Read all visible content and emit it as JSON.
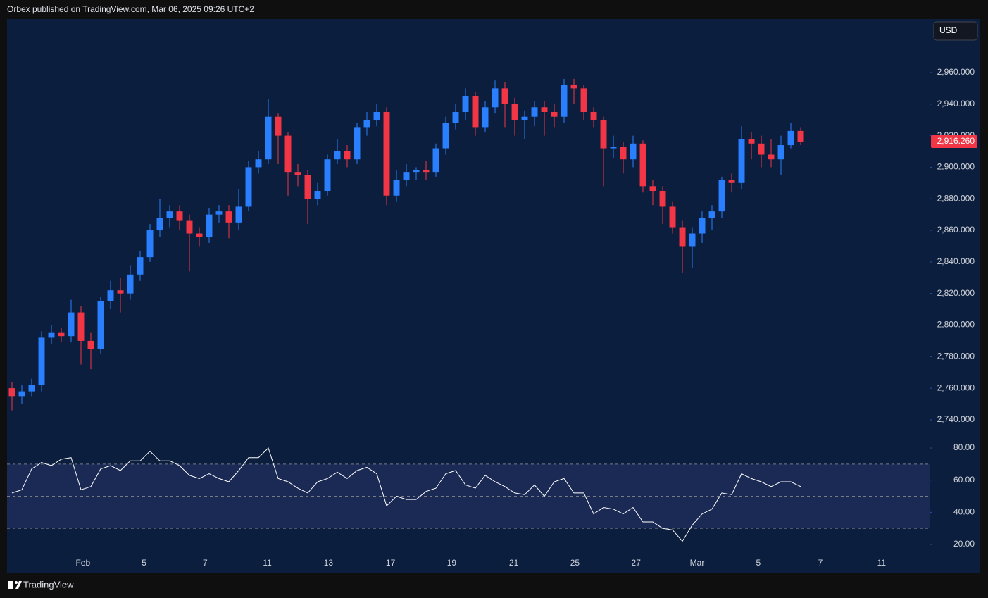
{
  "header": {
    "text": "Orbex published on TradingView.com, Mar 06, 2025 09:26 UTC+2"
  },
  "footer": {
    "brand": "TradingView"
  },
  "chart_data": [
    {
      "type": "candlestick",
      "currency": "USD",
      "up_color": "#2a7fff",
      "down_color": "#f23645",
      "last_price": {
        "value": 2916.26,
        "label": "2,916.260"
      },
      "open": [
        2760,
        2755,
        2758,
        2762,
        2792,
        2795,
        2793,
        2808,
        2790,
        2785,
        2815,
        2822,
        2820,
        2832,
        2843,
        2860,
        2868,
        2872,
        2866,
        2858,
        2856,
        2870,
        2872,
        2865,
        2875,
        2900,
        2905,
        2932,
        2920,
        2897,
        2895,
        2880,
        2885,
        2905,
        2910,
        2905,
        2925,
        2930,
        2935,
        2882,
        2892,
        2897,
        2898,
        2897,
        2912,
        2928,
        2935,
        2945,
        2925,
        2938,
        2950,
        2940,
        2930,
        2932,
        2938,
        2935,
        2932,
        2952,
        2950,
        2935,
        2930,
        2912,
        2913,
        2905,
        2915,
        2888,
        2885,
        2875,
        2862,
        2850,
        2858,
        2868,
        2872,
        2892,
        2890,
        2918,
        2915,
        2908,
        2905,
        2914,
        2923
      ],
      "high": [
        2764,
        2762,
        2766,
        2796,
        2800,
        2798,
        2816,
        2812,
        2795,
        2818,
        2828,
        2830,
        2838,
        2847,
        2864,
        2880,
        2876,
        2876,
        2870,
        2862,
        2874,
        2876,
        2876,
        2886,
        2904,
        2910,
        2943,
        2934,
        2922,
        2902,
        2898,
        2890,
        2908,
        2918,
        2914,
        2928,
        2935,
        2940,
        2938,
        2898,
        2902,
        2900,
        2904,
        2915,
        2932,
        2940,
        2950,
        2948,
        2942,
        2955,
        2954,
        2944,
        2936,
        2942,
        2942,
        2940,
        2956,
        2956,
        2952,
        2938,
        2932,
        2920,
        2916,
        2920,
        2917,
        2892,
        2888,
        2878,
        2866,
        2862,
        2872,
        2876,
        2894,
        2896,
        2926,
        2922,
        2920,
        2918,
        2920,
        2928,
        2925
      ],
      "low": [
        2746,
        2750,
        2755,
        2758,
        2788,
        2789,
        2789,
        2775,
        2772,
        2782,
        2810,
        2808,
        2816,
        2828,
        2840,
        2856,
        2862,
        2860,
        2834,
        2850,
        2852,
        2865,
        2855,
        2860,
        2872,
        2896,
        2902,
        2902,
        2882,
        2888,
        2864,
        2876,
        2882,
        2902,
        2900,
        2902,
        2920,
        2926,
        2876,
        2878,
        2888,
        2892,
        2892,
        2894,
        2908,
        2924,
        2930,
        2920,
        2922,
        2934,
        2925,
        2920,
        2918,
        2926,
        2920,
        2925,
        2928,
        2940,
        2930,
        2925,
        2888,
        2906,
        2896,
        2900,
        2884,
        2876,
        2864,
        2858,
        2833,
        2836,
        2852,
        2860,
        2868,
        2884,
        2886,
        2905,
        2900,
        2900,
        2895,
        2912,
        2914
      ],
      "close": [
        2755,
        2758,
        2762,
        2792,
        2795,
        2793,
        2808,
        2790,
        2785,
        2815,
        2822,
        2820,
        2832,
        2843,
        2860,
        2868,
        2872,
        2866,
        2858,
        2856,
        2870,
        2872,
        2865,
        2875,
        2900,
        2905,
        2932,
        2920,
        2897,
        2895,
        2880,
        2885,
        2905,
        2910,
        2905,
        2925,
        2930,
        2935,
        2882,
        2892,
        2897,
        2898,
        2897,
        2912,
        2928,
        2935,
        2945,
        2925,
        2938,
        2950,
        2940,
        2930,
        2932,
        2938,
        2935,
        2932,
        2952,
        2950,
        2935,
        2930,
        2912,
        2913,
        2905,
        2915,
        2888,
        2885,
        2875,
        2862,
        2850,
        2858,
        2868,
        2872,
        2892,
        2890,
        2918,
        2915,
        2908,
        2905,
        2914,
        2923,
        2916.26
      ],
      "ylim": [
        2730.6,
        2993.9
      ],
      "yticks": [
        {
          "value": 2740,
          "label": "2,740.000"
        },
        {
          "value": 2760,
          "label": "2,760.000"
        },
        {
          "value": 2780,
          "label": "2,780.000"
        },
        {
          "value": 2800,
          "label": "2,800.000"
        },
        {
          "value": 2820,
          "label": "2,820.000"
        },
        {
          "value": 2840,
          "label": "2,840.000"
        },
        {
          "value": 2860,
          "label": "2,860.000"
        },
        {
          "value": 2880,
          "label": "2,880.000"
        },
        {
          "value": 2900,
          "label": "2,900.000"
        },
        {
          "value": 2920,
          "label": "2,920.000"
        },
        {
          "value": 2940,
          "label": "2,940.000"
        },
        {
          "value": 2960,
          "label": "2,960.000"
        }
      ],
      "xlim": [
        -0.5,
        93.07
      ],
      "xticks": [
        {
          "value": 7.2,
          "label": "Feb"
        },
        {
          "value": 13.4,
          "label": "5"
        },
        {
          "value": 19.6,
          "label": "7"
        },
        {
          "value": 25.9,
          "label": "11"
        },
        {
          "value": 32.1,
          "label": "13"
        },
        {
          "value": 38.4,
          "label": "17"
        },
        {
          "value": 44.6,
          "label": "19"
        },
        {
          "value": 50.9,
          "label": "21"
        },
        {
          "value": 57.1,
          "label": "25"
        },
        {
          "value": 63.3,
          "label": "27"
        },
        {
          "value": 69.5,
          "label": "Mar"
        },
        {
          "value": 75.7,
          "label": "5"
        },
        {
          "value": 82,
          "label": "7"
        },
        {
          "value": 88.2,
          "label": "11"
        }
      ]
    },
    {
      "type": "line",
      "color": "#ffffff",
      "values": [
        52,
        54,
        67,
        71,
        69,
        73,
        74,
        54,
        56,
        67,
        69,
        66,
        72,
        72,
        78,
        72,
        72,
        69,
        63,
        61,
        64,
        61,
        59,
        66,
        74,
        74,
        80,
        61,
        59,
        55,
        52,
        59,
        61,
        65,
        61,
        66,
        68,
        64,
        44,
        50,
        48,
        48,
        53,
        55,
        64,
        66,
        57,
        55,
        63,
        59,
        56,
        52,
        51,
        57,
        50,
        59,
        61,
        52,
        52,
        39,
        43,
        42,
        39,
        43,
        34,
        34,
        30,
        29,
        22,
        32,
        39,
        42,
        52,
        51,
        64,
        61,
        59,
        56,
        59,
        59,
        56
      ],
      "bands": [
        30,
        50,
        70
      ],
      "band_fill": "#1b2a55",
      "ylim": [
        14.3,
        87.9
      ],
      "yticks": [
        {
          "value": 20,
          "label": "20.00"
        },
        {
          "value": 40,
          "label": "40.00"
        },
        {
          "value": 60,
          "label": "60.00"
        },
        {
          "value": 80,
          "label": "80.00"
        }
      ]
    }
  ]
}
